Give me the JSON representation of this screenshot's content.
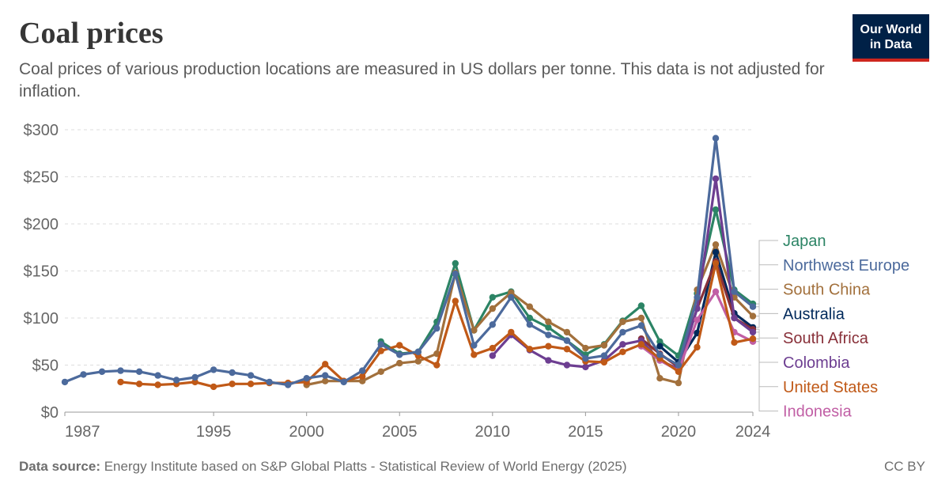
{
  "header": {
    "title": "Coal prices",
    "subtitle": "Coal prices of various production locations are measured in US dollars per tonne. This data is not adjusted for inflation.",
    "logo_line1": "Our World",
    "logo_line2": "in Data"
  },
  "footer": {
    "source_label": "Data source:",
    "source_text": "Energy Institute based on S&P Global Platts - Statistical Review of World Energy (2025)",
    "license": "CC BY"
  },
  "chart_data": {
    "type": "line",
    "title": "Coal prices",
    "ylim": [
      0,
      300
    ],
    "xlim": [
      1987,
      2024
    ],
    "yticks": [
      0,
      50,
      100,
      150,
      200,
      250,
      300
    ],
    "ytick_labels": [
      "$0",
      "$50",
      "$100",
      "$150",
      "$200",
      "$250",
      "$300"
    ],
    "xticks": [
      1987,
      1995,
      2000,
      2005,
      2010,
      2015,
      2020,
      2024
    ],
    "grid": true,
    "legend": "right",
    "series": [
      {
        "name": "Japan",
        "color": "#2c8465",
        "points": [
          [
            2004,
            75
          ],
          [
            2005,
            62
          ],
          [
            2006,
            64
          ],
          [
            2007,
            96
          ],
          [
            2008,
            158
          ],
          [
            2009,
            87
          ],
          [
            2010,
            122
          ],
          [
            2011,
            128
          ],
          [
            2012,
            100
          ],
          [
            2013,
            90
          ],
          [
            2014,
            76
          ],
          [
            2015,
            61
          ],
          [
            2016,
            72
          ],
          [
            2017,
            97
          ],
          [
            2018,
            113
          ],
          [
            2019,
            75
          ],
          [
            2020,
            60
          ],
          [
            2021,
            126
          ],
          [
            2022,
            215
          ],
          [
            2023,
            130
          ],
          [
            2024,
            115
          ]
        ]
      },
      {
        "name": "South China",
        "color": "#a2703c",
        "points": [
          [
            2000,
            29
          ],
          [
            2001,
            33
          ],
          [
            2002,
            33
          ],
          [
            2003,
            33
          ],
          [
            2004,
            43
          ],
          [
            2005,
            52
          ],
          [
            2006,
            54
          ],
          [
            2007,
            62
          ],
          [
            2008,
            148
          ],
          [
            2009,
            87
          ],
          [
            2010,
            110
          ],
          [
            2011,
            127
          ],
          [
            2012,
            112
          ],
          [
            2013,
            96
          ],
          [
            2014,
            85
          ],
          [
            2015,
            68
          ],
          [
            2016,
            71
          ],
          [
            2017,
            96
          ],
          [
            2018,
            100
          ],
          [
            2019,
            36
          ],
          [
            2020,
            31
          ],
          [
            2021,
            130
          ],
          [
            2022,
            178
          ],
          [
            2023,
            122
          ],
          [
            2024,
            102
          ]
        ]
      },
      {
        "name": "Australia",
        "color": "#00295b",
        "points": [
          [
            2019,
            70
          ],
          [
            2020,
            53
          ],
          [
            2021,
            84
          ],
          [
            2022,
            170
          ],
          [
            2023,
            105
          ],
          [
            2024,
            90
          ]
        ]
      },
      {
        "name": "South Africa",
        "color": "#883039",
        "points": [
          [
            2018,
            78
          ],
          [
            2019,
            62
          ],
          [
            2020,
            48
          ],
          [
            2021,
            110
          ],
          [
            2022,
            160
          ],
          [
            2023,
            100
          ],
          [
            2024,
            88
          ]
        ]
      },
      {
        "name": "Colombia",
        "color": "#6d3e91",
        "points": [
          [
            2010,
            60
          ],
          [
            2011,
            82
          ],
          [
            2012,
            66
          ],
          [
            2013,
            55
          ],
          [
            2014,
            50
          ],
          [
            2015,
            48
          ],
          [
            2016,
            55
          ],
          [
            2017,
            72
          ],
          [
            2018,
            76
          ],
          [
            2019,
            55
          ],
          [
            2020,
            46
          ],
          [
            2021,
            110
          ],
          [
            2022,
            248
          ],
          [
            2023,
            100
          ],
          [
            2024,
            85
          ]
        ]
      },
      {
        "name": "Indonesia",
        "color": "#c15fa5",
        "points": [
          [
            2018,
            70
          ],
          [
            2019,
            55
          ],
          [
            2020,
            44
          ],
          [
            2021,
            98
          ],
          [
            2022,
            128
          ],
          [
            2023,
            85
          ],
          [
            2024,
            75
          ]
        ]
      },
      {
        "name": "United States",
        "color": "#c05917",
        "points": [
          [
            1990,
            32
          ],
          [
            1991,
            30
          ],
          [
            1992,
            29
          ],
          [
            1993,
            30
          ],
          [
            1994,
            32
          ],
          [
            1995,
            27
          ],
          [
            1996,
            30
          ],
          [
            1997,
            30
          ],
          [
            1998,
            31
          ],
          [
            1999,
            31
          ],
          [
            2000,
            32
          ],
          [
            2001,
            51
          ],
          [
            2002,
            33
          ],
          [
            2003,
            38
          ],
          [
            2004,
            65
          ],
          [
            2005,
            71
          ],
          [
            2006,
            60
          ],
          [
            2007,
            50
          ],
          [
            2008,
            118
          ],
          [
            2009,
            61
          ],
          [
            2010,
            68
          ],
          [
            2011,
            85
          ],
          [
            2012,
            67
          ],
          [
            2013,
            70
          ],
          [
            2014,
            67
          ],
          [
            2015,
            54
          ],
          [
            2016,
            53
          ],
          [
            2017,
            64
          ],
          [
            2018,
            72
          ],
          [
            2019,
            57
          ],
          [
            2020,
            43
          ],
          [
            2021,
            69
          ],
          [
            2022,
            158
          ],
          [
            2023,
            74
          ],
          [
            2024,
            78
          ]
        ]
      },
      {
        "name": "Northwest Europe",
        "color": "#4c6a9c",
        "points": [
          [
            1987,
            32
          ],
          [
            1988,
            40
          ],
          [
            1989,
            43
          ],
          [
            1990,
            44
          ],
          [
            1991,
            43
          ],
          [
            1992,
            39
          ],
          [
            1993,
            34
          ],
          [
            1994,
            37
          ],
          [
            1995,
            45
          ],
          [
            1996,
            42
          ],
          [
            1997,
            39
          ],
          [
            1998,
            32
          ],
          [
            1999,
            29
          ],
          [
            2000,
            36
          ],
          [
            2001,
            39
          ],
          [
            2002,
            32
          ],
          [
            2003,
            44
          ],
          [
            2004,
            72
          ],
          [
            2005,
            61
          ],
          [
            2006,
            64
          ],
          [
            2007,
            89
          ],
          [
            2008,
            147
          ],
          [
            2009,
            71
          ],
          [
            2010,
            93
          ],
          [
            2011,
            122
          ],
          [
            2012,
            93
          ],
          [
            2013,
            82
          ],
          [
            2014,
            76
          ],
          [
            2015,
            57
          ],
          [
            2016,
            60
          ],
          [
            2017,
            85
          ],
          [
            2018,
            92
          ],
          [
            2019,
            61
          ],
          [
            2020,
            50
          ],
          [
            2021,
            122
          ],
          [
            2022,
            291
          ],
          [
            2023,
            128
          ],
          [
            2024,
            112
          ]
        ]
      }
    ],
    "legend_order": [
      "Japan",
      "Northwest Europe",
      "South China",
      "Australia",
      "South Africa",
      "Colombia",
      "United States",
      "Indonesia"
    ]
  }
}
